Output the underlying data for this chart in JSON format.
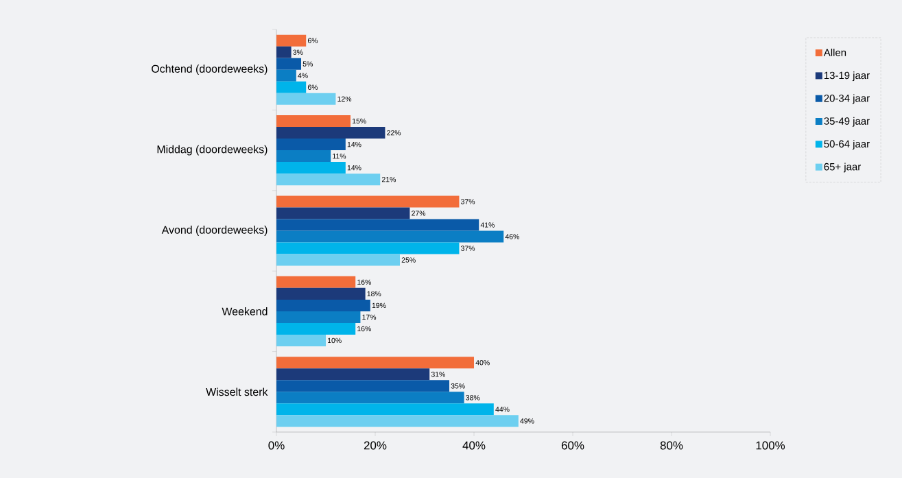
{
  "chart_data": {
    "type": "bar",
    "orientation": "horizontal",
    "categories": [
      "Ochtend (doordeweeks)",
      "Middag (doordeweeks)",
      "Avond (doordeweeks)",
      "Weekend",
      "Wisselt sterk"
    ],
    "series": [
      {
        "name": "Allen",
        "color": "#f26d3a",
        "values": [
          6,
          15,
          37,
          16,
          40
        ],
        "value_labels": [
          "6%",
          "15%",
          "37%",
          "16%",
          "40%"
        ]
      },
      {
        "name": "13-19 jaar",
        "color": "#1c3a7a",
        "values": [
          3,
          22,
          27,
          18,
          31
        ],
        "value_labels": [
          "3%",
          "22%",
          "27%",
          "18%",
          "31%"
        ]
      },
      {
        "name": "20-34 jaar",
        "color": "#0a5aa8",
        "values": [
          5,
          14,
          41,
          19,
          35
        ],
        "value_labels": [
          "5%",
          "14%",
          "41%",
          "19%",
          "35%"
        ]
      },
      {
        "name": "35-49 jaar",
        "color": "#0b7ec4",
        "values": [
          4,
          11,
          46,
          17,
          38
        ],
        "value_labels": [
          "4%",
          "11%",
          "46%",
          "17%",
          "38%"
        ]
      },
      {
        "name": "50-64 jaar",
        "color": "#00b4ea",
        "values": [
          6,
          14,
          37,
          16,
          44
        ],
        "value_labels": [
          "6%",
          "14%",
          "37%",
          "16%",
          "44%"
        ]
      },
      {
        "name": "65+ jaar",
        "color": "#6dcff0",
        "values": [
          12,
          21,
          25,
          10,
          49
        ],
        "value_labels": [
          "12%",
          "21%",
          "25%",
          "10%",
          "49%"
        ]
      }
    ],
    "xlim": [
      0,
      100
    ],
    "xticks": [
      {
        "value": 0,
        "label": "0%"
      },
      {
        "value": 20,
        "label": "20%"
      },
      {
        "value": 40,
        "label": "40%"
      },
      {
        "value": 60,
        "label": "60%"
      },
      {
        "value": 80,
        "label": "80%"
      },
      {
        "value": 100,
        "label": "100%"
      }
    ],
    "legend": "top right"
  }
}
